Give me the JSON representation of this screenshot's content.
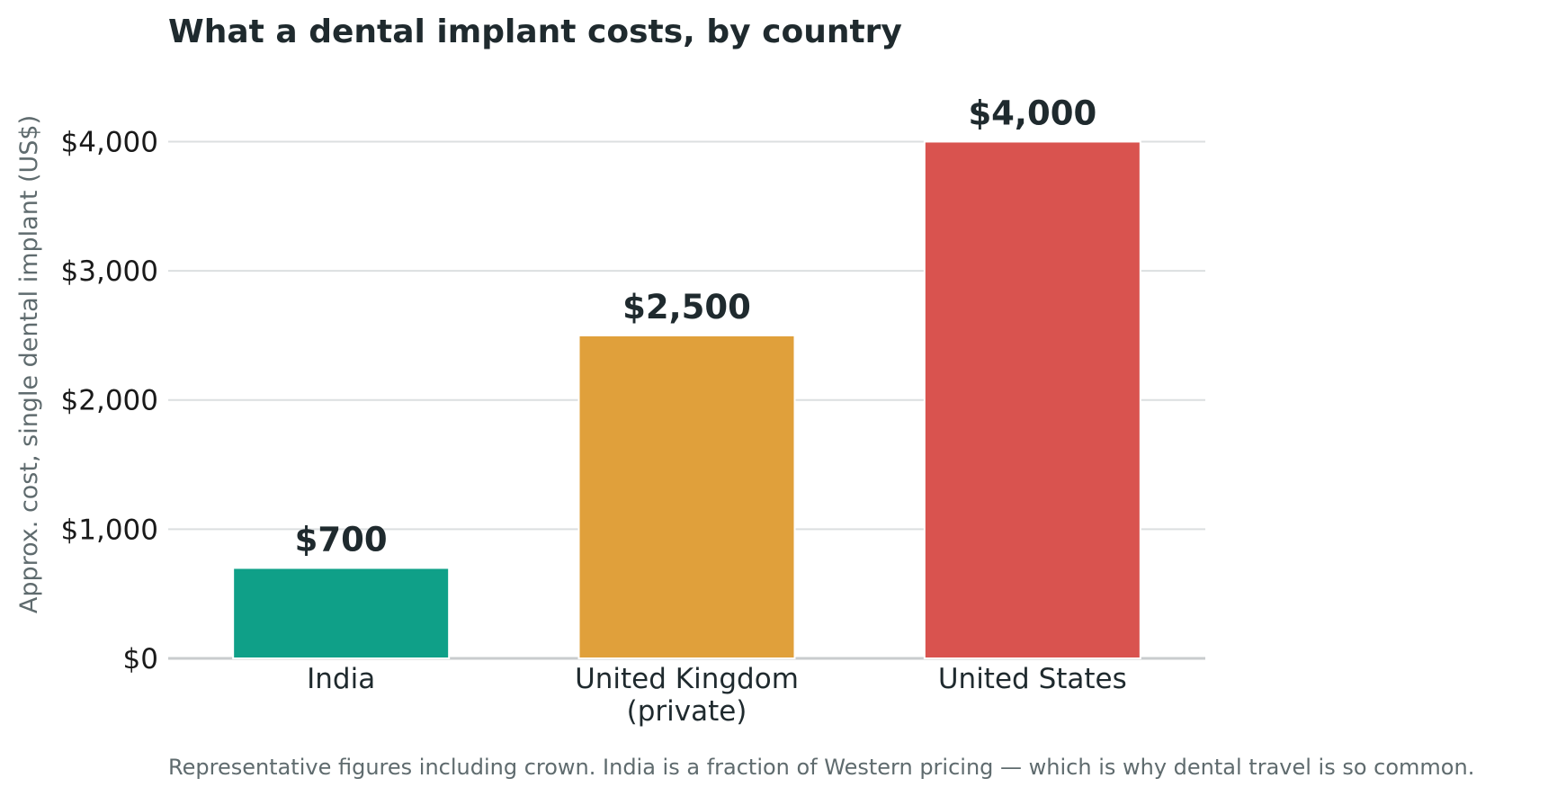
{
  "chart_data": {
    "type": "bar",
    "title": "What a dental implant costs, by country",
    "ylabel": "Approx. cost, single dental implant (US$)",
    "xlabel": "",
    "categories": [
      [
        "India"
      ],
      [
        "United Kingdom",
        "(private)"
      ],
      [
        "United States"
      ]
    ],
    "values": [
      700,
      2500,
      4000
    ],
    "value_labels": [
      "$700",
      "$2,500",
      "$4,000"
    ],
    "colors": [
      "#0fa088",
      "#e0a03b",
      "#d9534f"
    ],
    "ylim": [
      0,
      4400
    ],
    "yticks": [
      0,
      1000,
      2000,
      3000,
      4000
    ],
    "ytick_labels": [
      "$0",
      "$1,000",
      "$2,000",
      "$3,000",
      "$4,000"
    ],
    "grid": "horizontal",
    "footnote": "Representative figures including crown. India is a fraction of Western pricing — which is why dental travel is so common."
  }
}
